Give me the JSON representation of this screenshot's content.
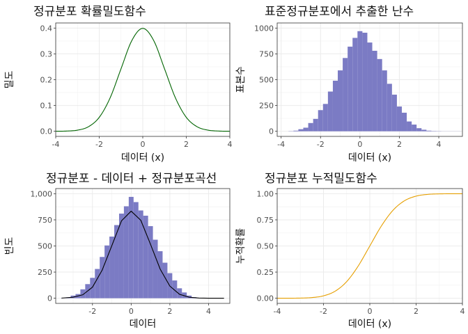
{
  "chart_data": [
    {
      "id": "pdf",
      "type": "line",
      "title": "정규분포 확률밀도함수",
      "xlabel": "데이터 (x)",
      "ylabel": "밀도",
      "xlim": [
        -4,
        4
      ],
      "ylim": [
        0,
        0.4
      ],
      "xticks": [
        -4,
        -2,
        0,
        2,
        4
      ],
      "yticks": [
        0.0,
        0.1,
        0.2,
        0.3,
        0.4
      ],
      "ytick_labels": [
        "0.0",
        "0.1",
        "0.2",
        "0.3",
        "0.4"
      ],
      "xtick_labels": [
        "-4",
        "-2",
        "0",
        "2",
        "4"
      ],
      "line_color": "#006400",
      "grid": true,
      "x": [
        -4.0,
        -3.5,
        -3.0,
        -2.5,
        -2.0,
        -1.5,
        -1.0,
        -0.5,
        0.0,
        0.5,
        1.0,
        1.5,
        2.0,
        2.5,
        3.0,
        3.5,
        4.0
      ],
      "y": [
        0.0001,
        0.0009,
        0.0044,
        0.0175,
        0.054,
        0.1295,
        0.242,
        0.3521,
        0.3989,
        0.3521,
        0.242,
        0.1295,
        0.054,
        0.0175,
        0.0044,
        0.0009,
        0.0001
      ]
    },
    {
      "id": "hist",
      "type": "bar",
      "title": "표준정규분포에서 추출한 난수",
      "xlabel": "데이터 (x)",
      "ylabel": "표본수",
      "xlim": [
        -4.2,
        5.2
      ],
      "ylim": [
        0,
        1000
      ],
      "xticks": [
        -4,
        -2,
        0,
        2,
        4
      ],
      "xtick_labels": [
        "-4",
        "-2",
        "0",
        "2",
        "4"
      ],
      "yticks": [
        0,
        250,
        500,
        750,
        1000
      ],
      "ytick_labels": [
        "0",
        "250",
        "500",
        "750",
        "1000"
      ],
      "bar_color": "#7b7bc4",
      "grid": true,
      "bin_width": 0.25,
      "bin_centers": [
        -3.5,
        -3.25,
        -3.0,
        -2.75,
        -2.5,
        -2.25,
        -2.0,
        -1.75,
        -1.5,
        -1.25,
        -1.0,
        -0.75,
        -0.5,
        -0.25,
        0.0,
        0.25,
        0.5,
        0.75,
        1.0,
        1.25,
        1.5,
        1.75,
        2.0,
        2.25,
        2.5,
        2.75,
        3.0,
        3.25,
        3.5,
        3.75,
        4.0,
        4.25,
        4.5,
        4.75,
        5.0
      ],
      "values": [
        2,
        6,
        20,
        35,
        80,
        120,
        205,
        265,
        385,
        490,
        590,
        710,
        820,
        905,
        970,
        955,
        860,
        780,
        700,
        590,
        460,
        355,
        240,
        180,
        95,
        65,
        30,
        15,
        6,
        3,
        2,
        1,
        1,
        1,
        1
      ]
    },
    {
      "id": "hist_curve",
      "type": "bar",
      "title": "정규분포 - 데이터 + 정규분포곡선",
      "xlabel": "데이터",
      "ylabel": "빈도",
      "xlim": [
        -3.9,
        5.1
      ],
      "ylim": [
        0,
        1000
      ],
      "xticks": [
        -4,
        -2,
        0,
        2,
        4
      ],
      "xtick_labels": [
        "-4",
        "-2",
        "0",
        "2",
        "4"
      ],
      "yticks": [
        0,
        250,
        500,
        750,
        1000
      ],
      "ytick_labels": [
        "0",
        "250",
        "500",
        "750",
        "1,000"
      ],
      "bar_color": "#7b7bc4",
      "curve_color": "#000000",
      "grid": true,
      "bin_width": 0.25,
      "bin_centers": [
        -3.5,
        -3.25,
        -3.0,
        -2.75,
        -2.5,
        -2.25,
        -2.0,
        -1.75,
        -1.5,
        -1.25,
        -1.0,
        -0.75,
        -0.5,
        -0.25,
        0.0,
        0.25,
        0.5,
        0.75,
        1.0,
        1.25,
        1.5,
        1.75,
        2.0,
        2.25,
        2.5,
        2.75,
        3.0,
        3.25,
        3.5
      ],
      "values": [
        3,
        8,
        25,
        40,
        85,
        135,
        195,
        280,
        395,
        505,
        590,
        700,
        810,
        880,
        970,
        920,
        840,
        790,
        690,
        560,
        450,
        340,
        240,
        170,
        95,
        55,
        25,
        10,
        4
      ],
      "curve_x": [
        -3.6,
        -3.0,
        -2.5,
        -2.0,
        -1.5,
        -1.0,
        -0.5,
        0.0,
        0.5,
        1.0,
        1.5,
        2.0,
        2.5,
        3.0,
        3.5,
        4.0,
        4.5,
        4.8
      ],
      "curve_y": [
        5,
        37,
        128,
        410,
        1040,
        1950,
        2870,
        3230,
        2890,
        2000,
        1080,
        450,
        145,
        37,
        7,
        1,
        0,
        0
      ],
      "curve_scale": 0.000258
    },
    {
      "id": "cdf",
      "type": "line",
      "title": "정규분포 누적밀도함수",
      "xlabel": "데이터 (x)",
      "ylabel": "누적확률",
      "xlim": [
        -4,
        4
      ],
      "ylim": [
        0,
        1
      ],
      "xticks": [
        -4,
        -2,
        0,
        2,
        4
      ],
      "xtick_labels": [
        "-4",
        "-2",
        "0",
        "2",
        "4"
      ],
      "yticks": [
        0.0,
        0.25,
        0.5,
        0.75,
        1.0
      ],
      "ytick_labels": [
        "0.00",
        "0.25",
        "0.50",
        "0.75",
        "1.00"
      ],
      "line_color": "#e69f00",
      "grid": true,
      "x": [
        -4.0,
        -3.5,
        -3.0,
        -2.5,
        -2.0,
        -1.5,
        -1.0,
        -0.5,
        0.0,
        0.5,
        1.0,
        1.5,
        2.0,
        2.5,
        3.0,
        3.5,
        4.0
      ],
      "y": [
        0.0,
        0.0002,
        0.0013,
        0.0062,
        0.0228,
        0.0668,
        0.1587,
        0.3085,
        0.5,
        0.6915,
        0.8413,
        0.9332,
        0.9772,
        0.9938,
        0.9987,
        0.9998,
        1.0
      ]
    }
  ]
}
